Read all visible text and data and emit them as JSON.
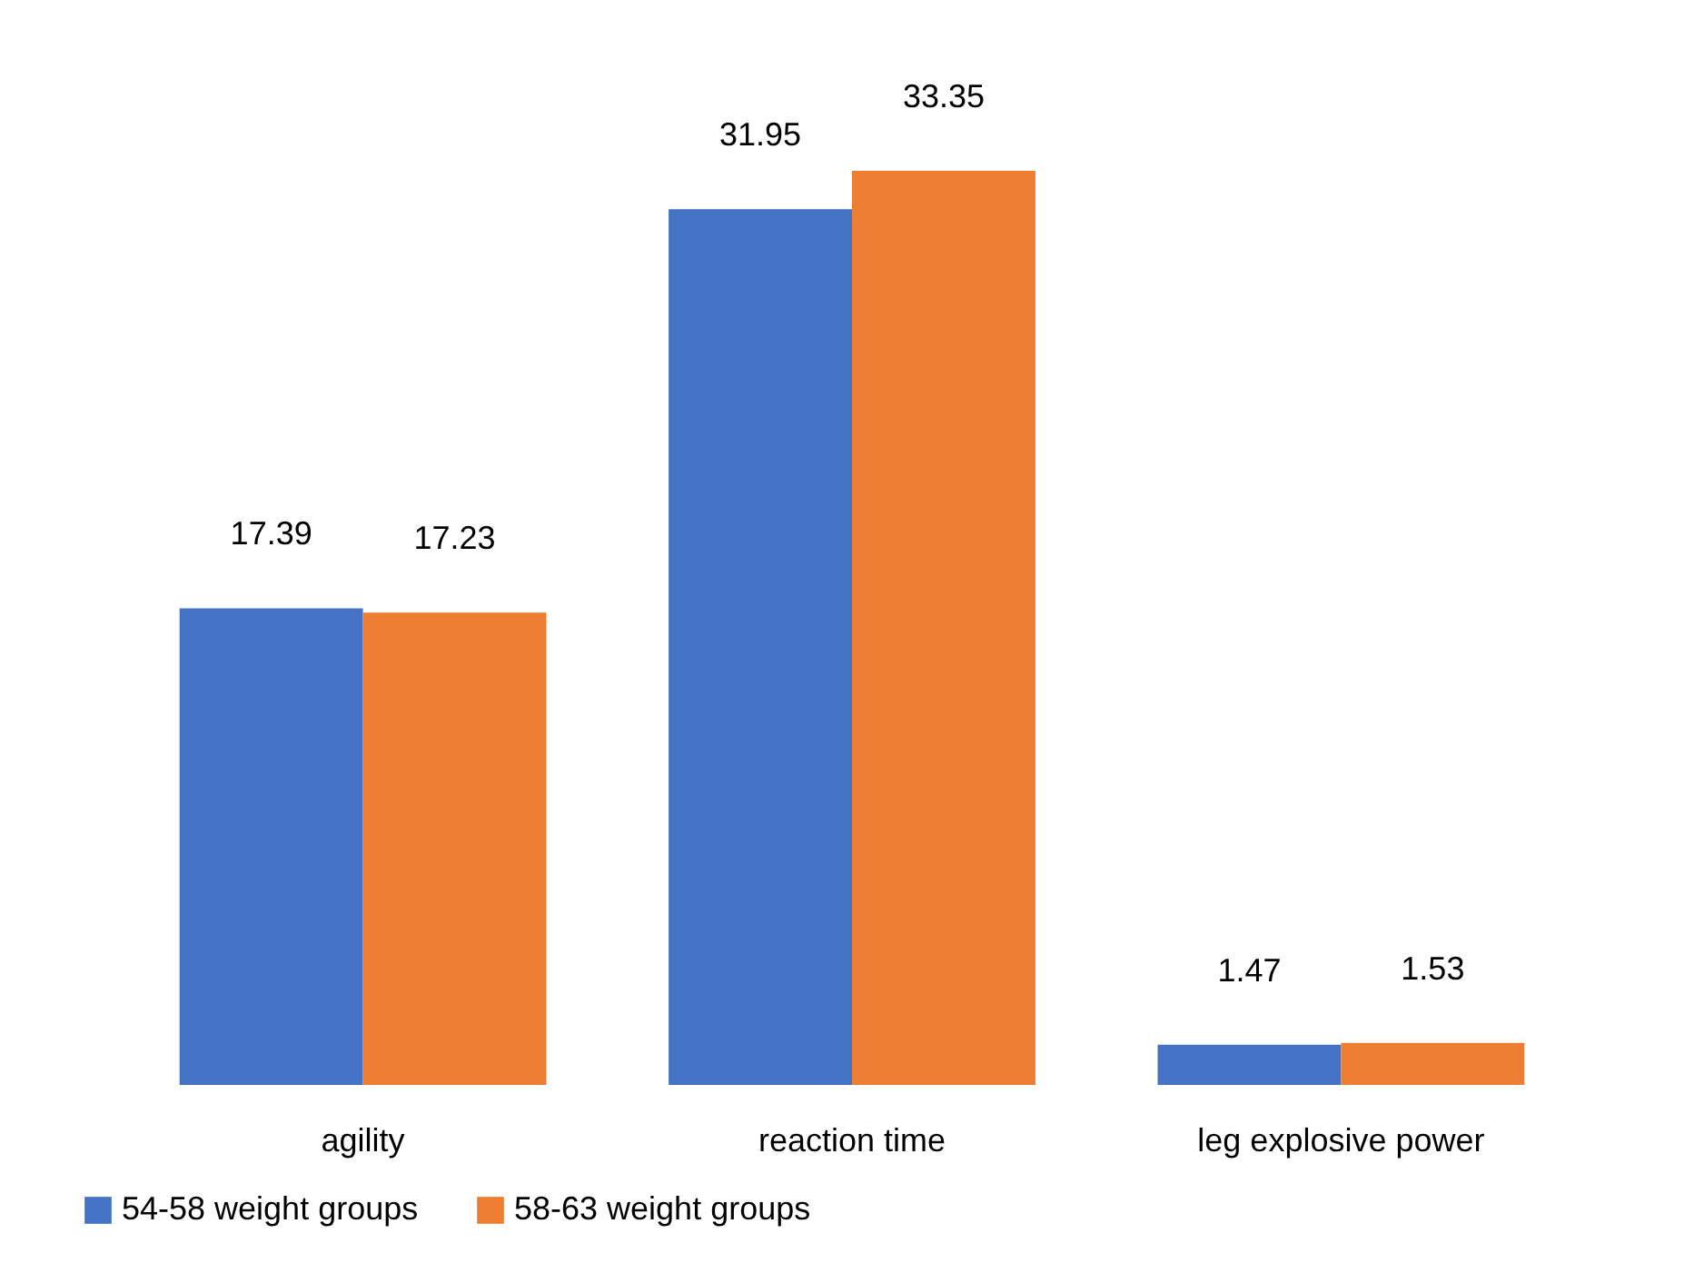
{
  "chart_data": {
    "type": "bar",
    "categories": [
      "agility",
      "reaction time",
      "leg explosive power"
    ],
    "series": [
      {
        "name": "54-58 weight groups",
        "color": "#4472c4",
        "values": [
          17.39,
          31.95,
          1.47
        ]
      },
      {
        "name": "58-63 weight groups",
        "color": "#ed7d31",
        "values": [
          17.23,
          33.35,
          1.53
        ]
      }
    ],
    "data_labels": true,
    "legend": "bottom"
  }
}
